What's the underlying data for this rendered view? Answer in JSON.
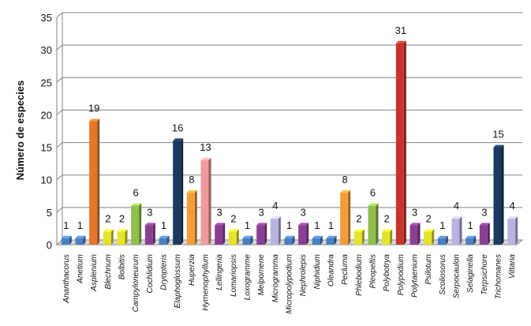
{
  "chart_data": {
    "type": "bar",
    "title": "",
    "xlabel": "",
    "ylabel": "Número de especies",
    "ylim": [
      0,
      35
    ],
    "yticks": [
      0,
      5,
      10,
      15,
      20,
      25,
      30,
      35
    ],
    "grid": true,
    "legend": "none",
    "categories": [
      "Ananthacorus",
      "Anetium",
      "Asplenium",
      "Blechnum",
      "Bolbitis",
      "Campyloneurum",
      "Cochlidium",
      "Dryopteris",
      "Elaphoglossum",
      "Huperzia",
      "Hymenophyllum",
      "Lellingeria",
      "Lomariopsis",
      "Loxogramme",
      "Melpomene",
      "Microgramma",
      "Micropolypodium",
      "Nephrolepis",
      "Niphidium",
      "Oleandra",
      "Pecluma",
      "Phlebodium",
      "Pleopeltis",
      "Polybotrya",
      "Polypodium",
      "Polytaenium",
      "Psilotum",
      "Scoliosorus",
      "Serpocaulon",
      "Selaginella",
      "Terpsichore",
      "Trichomanes",
      "Vittaria"
    ],
    "values": [
      1,
      1,
      19,
      2,
      2,
      6,
      3,
      1,
      16,
      8,
      13,
      3,
      2,
      1,
      3,
      4,
      1,
      3,
      1,
      1,
      8,
      2,
      6,
      2,
      31,
      3,
      2,
      1,
      4,
      1,
      3,
      15,
      4
    ],
    "colors": [
      "#4a7fc0",
      "#4a7fc0",
      "#e5762b",
      "#e3e32c",
      "#e3e32c",
      "#8fbf4c",
      "#8b3f93",
      "#4a7fc0",
      "#1a3a60",
      "#f59c3a",
      "#ef9a9a",
      "#8b3f93",
      "#e3e32c",
      "#4a7fc0",
      "#8b3f93",
      "#b8b4e0",
      "#4a7fc0",
      "#8b3f93",
      "#4a7fc0",
      "#4a7fc0",
      "#f59c3a",
      "#e3e32c",
      "#8fbf4c",
      "#e3e32c",
      "#c8342b",
      "#8b3f93",
      "#e3e32c",
      "#4a7fc0",
      "#b8b4e0",
      "#4a7fc0",
      "#8b3f93",
      "#1a3a60",
      "#b8b4e0"
    ]
  }
}
